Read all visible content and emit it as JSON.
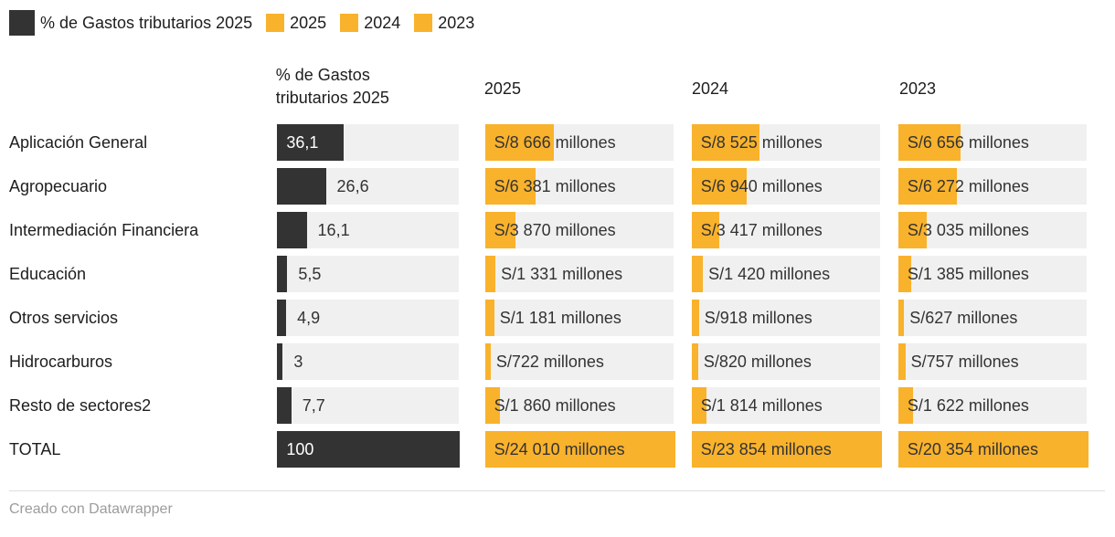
{
  "legend": {
    "items": [
      {
        "label": "% de Gastos tributarios 2025",
        "swatch": "dark"
      },
      {
        "label": "2025",
        "swatch": "yellow"
      },
      {
        "label": "2024",
        "swatch": "yellow"
      },
      {
        "label": "2023",
        "swatch": "yellow"
      }
    ]
  },
  "header": {
    "pct_line1": "% de Gastos",
    "pct_line2": "tributarios 2025",
    "years": [
      "2025",
      "2024",
      "2023"
    ]
  },
  "colors": {
    "dark": "#333333",
    "yellow": "#F9B22C",
    "track": "#F0F0F0",
    "text": "#1d1d1d",
    "muted": "#9c9c9c"
  },
  "footer": {
    "credit": "Creado con Datawrapper"
  },
  "chart_data": {
    "type": "table",
    "title": "",
    "categories": [
      "Aplicación General",
      "Agropecuario",
      "Intermediación Financiera",
      "Educación",
      "Otros servicios",
      "Hidrocarburos",
      "Resto de sectores2",
      "TOTAL"
    ],
    "series": [
      {
        "name": "% de Gastos tributarios 2025",
        "unit": "%",
        "axis_range": [
          0,
          100
        ],
        "values": [
          36.1,
          26.6,
          16.1,
          5.5,
          4.9,
          3,
          7.7,
          100
        ],
        "display": [
          "36,1",
          "26,6",
          "16,1",
          "5,5",
          "4,9",
          "3",
          "7,7",
          "100"
        ]
      },
      {
        "name": "2025",
        "unit": "S/ millones",
        "total": 24010,
        "values": [
          8666,
          6381,
          3870,
          1331,
          1181,
          722,
          1860,
          24010
        ],
        "display": [
          "S/8 666 millones",
          "S/6 381 millones",
          "S/3 870 millones",
          "S/1 331 millones",
          "S/1 181 millones",
          "S/722 millones",
          "S/1 860 millones",
          "S/24 010 millones"
        ]
      },
      {
        "name": "2024",
        "unit": "S/ millones",
        "total": 23854,
        "values": [
          8525,
          6940,
          3417,
          1420,
          918,
          820,
          1814,
          23854
        ],
        "display": [
          "S/8 525 millones",
          "S/6 940 millones",
          "S/3 417 millones",
          "S/1 420 millones",
          "S/918 millones",
          "S/820 millones",
          "S/1 814 millones",
          "S/23 854 millones"
        ]
      },
      {
        "name": "2023",
        "unit": "S/ millones",
        "total": 20354,
        "values": [
          6656,
          6272,
          3035,
          1385,
          627,
          757,
          1622,
          20354
        ],
        "display": [
          "S/6 656 millones",
          "S/6 272 millones",
          "S/3 035 millones",
          "S/1 385 millones",
          "S/627 millones",
          "S/757 millones",
          "S/1 622 millones",
          "S/20 354 millones"
        ]
      }
    ],
    "legend_position": "top",
    "grid": false
  }
}
